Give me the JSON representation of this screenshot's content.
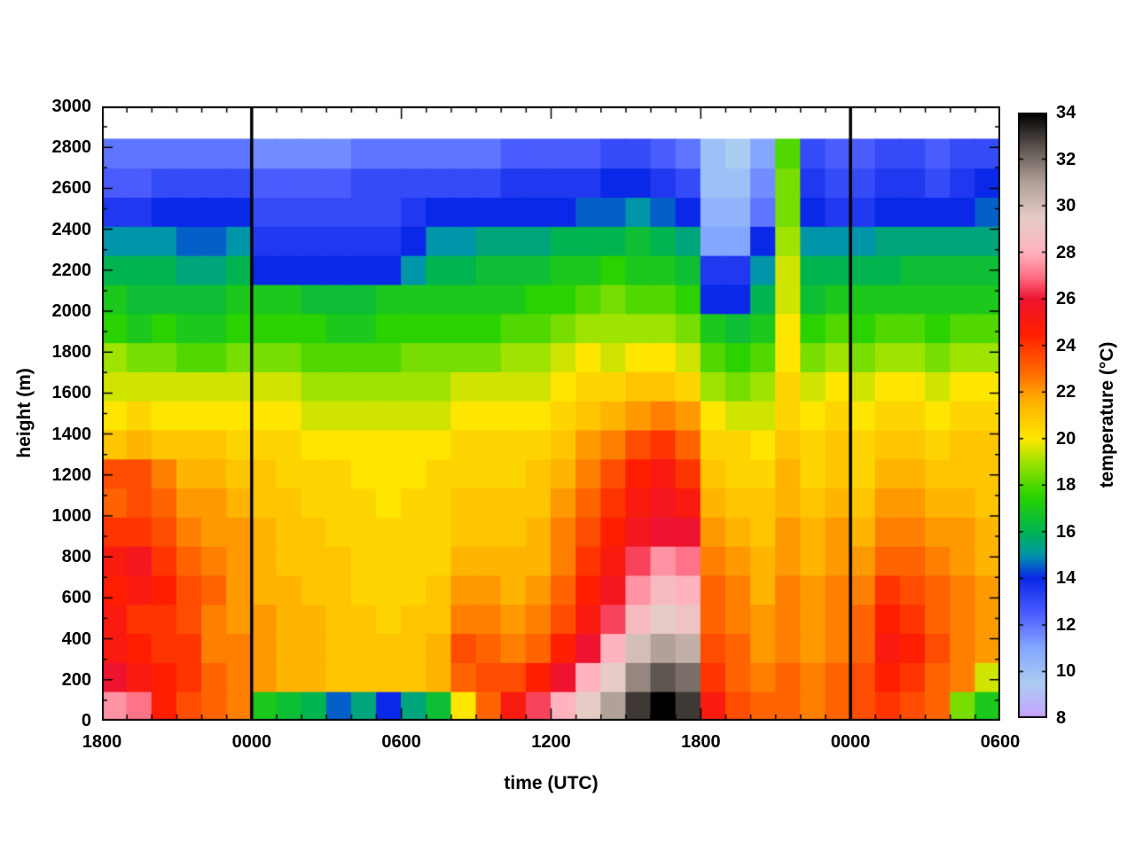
{
  "chart_data": {
    "type": "heatmap",
    "title": "",
    "units": "degC",
    "x_axis": {
      "label": "time (UTC)",
      "tick_labels": [
        "1800",
        "0000",
        "0600",
        "1200",
        "1800",
        "0000",
        "0600"
      ],
      "tick_hours": [
        0,
        6,
        12,
        18,
        24,
        30,
        36
      ],
      "minor_tick_step_hours": 1,
      "range_hours": [
        0,
        36
      ]
    },
    "y_axis": {
      "label": "height (m)",
      "tick_labels": [
        "0",
        "200",
        "400",
        "600",
        "800",
        "1000",
        "1200",
        "1400",
        "1600",
        "1800",
        "2000",
        "2200",
        "2400",
        "2600",
        "2800",
        "3000"
      ],
      "tick_values": [
        0,
        200,
        400,
        600,
        800,
        1000,
        1200,
        1400,
        1600,
        1800,
        2000,
        2200,
        2400,
        2600,
        2800,
        3000
      ],
      "minor_tick_step_m": 100,
      "range_m": [
        0,
        3000
      ]
    },
    "colorbar": {
      "label": "temperature (°C)",
      "tick_labels": [
        "8",
        "10",
        "12",
        "14",
        "16",
        "18",
        "20",
        "22",
        "24",
        "26",
        "28",
        "30",
        "32",
        "34"
      ],
      "tick_values": [
        8,
        10,
        12,
        14,
        16,
        18,
        20,
        22,
        24,
        26,
        28,
        30,
        32,
        34
      ],
      "range": [
        8,
        34
      ],
      "palette_stops": [
        [
          8,
          "#c8a2ff"
        ],
        [
          9.5,
          "#aacdf2"
        ],
        [
          11,
          "#84a6ff"
        ],
        [
          12.5,
          "#4b5cff"
        ],
        [
          14,
          "#0a28e8"
        ],
        [
          15,
          "#0095a8"
        ],
        [
          16,
          "#00b450"
        ],
        [
          17.5,
          "#2ad200"
        ],
        [
          19,
          "#9fe300"
        ],
        [
          20,
          "#ffe600"
        ],
        [
          21.5,
          "#ffb400"
        ],
        [
          23,
          "#ff6400"
        ],
        [
          24.5,
          "#ff1e00"
        ],
        [
          26,
          "#ee1430"
        ],
        [
          27,
          "#ff7388"
        ],
        [
          28,
          "#ffb3be"
        ],
        [
          29.5,
          "#e5ccc6"
        ],
        [
          31,
          "#b2a198"
        ],
        [
          32.5,
          "#5e5550"
        ],
        [
          34,
          "#000000"
        ]
      ]
    },
    "vertical_lines_hours": [
      6,
      30
    ],
    "line_color": "#000000",
    "background_color": "#ffffff",
    "grid": {
      "n_time": 36,
      "time_start_hours": 0,
      "time_step_hours": 1,
      "n_height": 20,
      "height_start_m": 0,
      "height_step_m": 142,
      "order": "rows bottom-to-top",
      "values": [
        [
          27.5,
          27,
          24.5,
          23.5,
          23,
          22.5,
          17,
          16.5,
          16,
          14.5,
          15.5,
          14,
          15.5,
          16.5,
          20,
          23,
          25,
          26.5,
          28,
          29.5,
          31,
          33,
          34,
          33,
          25,
          23.5,
          23,
          23,
          22.5,
          23,
          23.5,
          24,
          23.5,
          23,
          18.5,
          17
        ],
        [
          26,
          25,
          24.5,
          24,
          23,
          22.5,
          22,
          21.5,
          21.5,
          21,
          21,
          21,
          21,
          21.5,
          23,
          23.5,
          23.5,
          24.5,
          26,
          28,
          29.5,
          31.5,
          32.5,
          32,
          24,
          23,
          22.5,
          23,
          22.5,
          23,
          23.5,
          24.5,
          24,
          23,
          22.5,
          19.5
        ],
        [
          25,
          24.5,
          24,
          24,
          22.5,
          22.5,
          22,
          21.5,
          21.5,
          21,
          21,
          21,
          21,
          21.5,
          23.5,
          23,
          22.5,
          23,
          24.5,
          26,
          28,
          30,
          31,
          30.5,
          23.5,
          23,
          22,
          22.5,
          22,
          22.5,
          23,
          25,
          24.5,
          23.5,
          22.5,
          22
        ],
        [
          25,
          24,
          24,
          23.5,
          22.5,
          22,
          22,
          21.5,
          21.5,
          21,
          21,
          20.5,
          21,
          21,
          22.5,
          22.5,
          22,
          22.5,
          23.5,
          25,
          26.5,
          28.5,
          29.5,
          29,
          23,
          22.5,
          22,
          22.5,
          22,
          22.5,
          23,
          24.5,
          24,
          23,
          22.5,
          22
        ],
        [
          24.5,
          25,
          24.5,
          23.5,
          23,
          22,
          21.5,
          21.5,
          21,
          21,
          20.5,
          20.5,
          20.5,
          21,
          22,
          22,
          21.5,
          22,
          23,
          24.5,
          25.5,
          27.5,
          28.5,
          28,
          23,
          22.5,
          21.5,
          22.5,
          22,
          22.5,
          22.5,
          24,
          23.5,
          23,
          22.5,
          22
        ],
        [
          25,
          25.5,
          24,
          23,
          22.5,
          22,
          21.5,
          21,
          21,
          21,
          20.5,
          20.5,
          20.5,
          20.5,
          21.5,
          21.5,
          21.5,
          21.5,
          22.5,
          24,
          25,
          26.5,
          27.5,
          27,
          22.5,
          22,
          21.5,
          22,
          21.5,
          22,
          22,
          23,
          23,
          22.5,
          22,
          21.5
        ],
        [
          24,
          24,
          23.5,
          22.5,
          22,
          22,
          21.5,
          21,
          21,
          20.5,
          20.5,
          20.5,
          20.5,
          20.5,
          21,
          21,
          21,
          21.5,
          22.5,
          23.5,
          24.5,
          25.5,
          26,
          26,
          22,
          21.5,
          21,
          22,
          21.5,
          22,
          21.5,
          22.5,
          22.5,
          22,
          22,
          21.5
        ],
        [
          23,
          23.5,
          23,
          22,
          22,
          21.5,
          21,
          21,
          20.5,
          20.5,
          20.5,
          20,
          20.5,
          20.5,
          21,
          21,
          21,
          21,
          22,
          23,
          24,
          25,
          25.5,
          25,
          21.5,
          21,
          21,
          21.5,
          21,
          21.5,
          21,
          22,
          22,
          21.5,
          21.5,
          21
        ],
        [
          23.5,
          23.5,
          22.5,
          21.5,
          21.5,
          21,
          21,
          20.5,
          20.5,
          20.5,
          20,
          20,
          20,
          20.5,
          20.5,
          20.5,
          20.5,
          21,
          21.5,
          22.5,
          23.5,
          24.5,
          25,
          24,
          21,
          20.5,
          20.5,
          21.5,
          20.5,
          21,
          20.5,
          21.5,
          21.5,
          21,
          21,
          21
        ],
        [
          21,
          21.5,
          21,
          21,
          21,
          20.5,
          20.5,
          20.5,
          20,
          20,
          20,
          20,
          20,
          20,
          20.5,
          20.5,
          20.5,
          20.5,
          21,
          22,
          22.5,
          23.5,
          24,
          23,
          20.5,
          20.5,
          20,
          21,
          20.5,
          21,
          20.5,
          21,
          21,
          20.5,
          21,
          21
        ],
        [
          20,
          20.5,
          20,
          20,
          20,
          20,
          20,
          20,
          19.5,
          19.5,
          19.5,
          19.5,
          19.5,
          19.5,
          20,
          20,
          20,
          20,
          20.5,
          21,
          21.5,
          22,
          22.5,
          22,
          20,
          19.5,
          19.5,
          20.5,
          20,
          20.5,
          20,
          20.5,
          20.5,
          20,
          20.5,
          20.5
        ],
        [
          19.5,
          19.5,
          19.5,
          19.5,
          19.5,
          19.5,
          19.5,
          19.5,
          19,
          19,
          19,
          19,
          19,
          19,
          19.5,
          19.5,
          19.5,
          19.5,
          20,
          20.5,
          20.5,
          21,
          21,
          20.5,
          19,
          18.5,
          19,
          20.5,
          19.5,
          20,
          19.5,
          20,
          20,
          19.5,
          20,
          20
        ],
        [
          19,
          18.5,
          18.5,
          18,
          18,
          18.5,
          18.5,
          18.5,
          18,
          18,
          18,
          18,
          18.5,
          18.5,
          18.5,
          18.5,
          19,
          19,
          19.5,
          20,
          19.5,
          20,
          20,
          19.5,
          18,
          17.5,
          18,
          20,
          18.5,
          19,
          18.5,
          19,
          19,
          18.5,
          19,
          19
        ],
        [
          17.5,
          17,
          17.5,
          17,
          17,
          17.5,
          17.5,
          17.5,
          17.5,
          17,
          17,
          17.5,
          17.5,
          17.5,
          17.5,
          17.5,
          18,
          18,
          18.5,
          19,
          19,
          19,
          19,
          18.5,
          17,
          16.5,
          17,
          20,
          17.5,
          18,
          17.5,
          18,
          18,
          17.5,
          18,
          18
        ],
        [
          17,
          16.5,
          16.5,
          16.5,
          16.5,
          17,
          17,
          17,
          16.5,
          16.5,
          16.5,
          17,
          17,
          17,
          17,
          17,
          17,
          17.5,
          17.5,
          18,
          18.5,
          18,
          18,
          17.5,
          14,
          14,
          16,
          19.5,
          16.5,
          17,
          17,
          17,
          17,
          17,
          17,
          17
        ],
        [
          16,
          16,
          16,
          15.5,
          15.5,
          16,
          14,
          14,
          14,
          14,
          14,
          14,
          15,
          16,
          16,
          16.5,
          16.5,
          16.5,
          17,
          17,
          17.5,
          17,
          17,
          16.5,
          13.5,
          13.5,
          15,
          19.5,
          16,
          16,
          16,
          16,
          16.5,
          16.5,
          16.5,
          16.5
        ],
        [
          15,
          15,
          15,
          14.5,
          14.5,
          15,
          13.5,
          13.5,
          13.5,
          13.5,
          13.5,
          13.5,
          14,
          15,
          15,
          15.5,
          15.5,
          15.5,
          16,
          16,
          16,
          16.5,
          16,
          15.5,
          11,
          11,
          14,
          19,
          15,
          15,
          15,
          15.5,
          15.5,
          15.5,
          15.5,
          15.5
        ],
        [
          13.5,
          13.5,
          14,
          14,
          14,
          14,
          13,
          13,
          13,
          13,
          13,
          13,
          13.5,
          14,
          14,
          14,
          14,
          14,
          14,
          14.5,
          14.5,
          15,
          14.5,
          14,
          10.5,
          10.5,
          12,
          18.5,
          14,
          13.5,
          13.5,
          14,
          14,
          14,
          14,
          14.5
        ],
        [
          12.5,
          12.5,
          13,
          13,
          13,
          13,
          12.5,
          12.5,
          12.5,
          12.5,
          13,
          13,
          13,
          13,
          13,
          13,
          13.5,
          13.5,
          13.5,
          13.5,
          14,
          14,
          13.5,
          13,
          10,
          10,
          11.5,
          18.5,
          13.5,
          13,
          13,
          13.5,
          13.5,
          13,
          13.5,
          14
        ],
        [
          12,
          12,
          12,
          12,
          12,
          12,
          11.5,
          11.5,
          11.5,
          11.5,
          12,
          12,
          12,
          12,
          12,
          12,
          12.5,
          12.5,
          12.5,
          12.5,
          13,
          13,
          12.5,
          12,
          10,
          9.5,
          11,
          18,
          13,
          12.5,
          12.5,
          13,
          13,
          12.5,
          13,
          13
        ]
      ]
    }
  }
}
